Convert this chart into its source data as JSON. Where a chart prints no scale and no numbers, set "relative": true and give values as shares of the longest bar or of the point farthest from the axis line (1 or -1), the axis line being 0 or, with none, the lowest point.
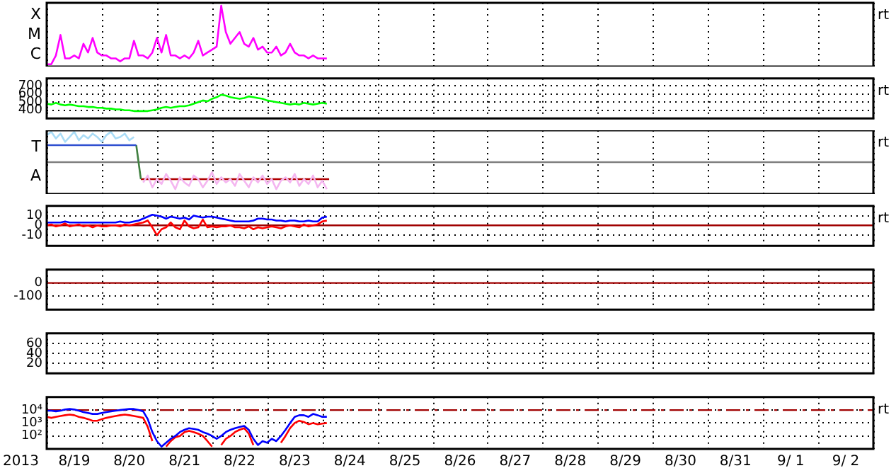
{
  "chart_data": [
    {
      "type": "line",
      "relative": true,
      "grid": "x",
      "tick_labels": "y",
      "annotations": [
        "rt",
        "X",
        "M",
        "C"
      ],
      "xlim": [
        "2013-08-19T00:00",
        "2013-09-03T00:00"
      ],
      "xticks": [
        {
          "value": "2013-08-19T00:00",
          "label": null
        },
        {
          "value": "2013-08-20T00:00",
          "label": null
        },
        {
          "value": "2013-08-21T00:00",
          "label": null
        },
        {
          "value": "2013-08-22T00:00",
          "label": null
        },
        {
          "value": "2013-08-23T00:00",
          "label": null
        },
        {
          "value": "2013-08-24T00:00",
          "label": null
        },
        {
          "value": "2013-08-25T00:00",
          "label": null
        },
        {
          "value": "2013-08-26T00:00",
          "label": null
        },
        {
          "value": "2013-08-27T00:00",
          "label": null
        },
        {
          "value": "2013-08-28T00:00",
          "label": null
        },
        {
          "value": "2013-08-29T00:00",
          "label": null
        },
        {
          "value": "2013-08-30T00:00",
          "label": null
        },
        {
          "value": "2013-08-31T00:00",
          "label": null
        },
        {
          "value": "2013-09-01T00:00",
          "label": null
        },
        {
          "value": "2013-09-02T00:00",
          "label": null
        },
        {
          "value": "2013-09-03T00:00",
          "label": null
        }
      ],
      "x": [
        "2013-08-19T00:00",
        "2013-08-19T02:00",
        "2013-08-19T04:00",
        "2013-08-19T06:00",
        "2013-08-19T08:00",
        "2013-08-19T10:00",
        "2013-08-19T12:00",
        "2013-08-19T14:00",
        "2013-08-19T16:00",
        "2013-08-19T18:00",
        "2013-08-19T20:00",
        "2013-08-19T22:00",
        "2013-08-20T00:00",
        "2013-08-20T02:00",
        "2013-08-20T04:00",
        "2013-08-20T06:00",
        "2013-08-20T08:00",
        "2013-08-20T10:00",
        "2013-08-20T12:00",
        "2013-08-20T14:00",
        "2013-08-20T16:00",
        "2013-08-20T18:00",
        "2013-08-20T20:00",
        "2013-08-20T22:00",
        "2013-08-21T00:00",
        "2013-08-21T02:00",
        "2013-08-21T04:00",
        "2013-08-21T06:00",
        "2013-08-21T08:00",
        "2013-08-21T10:00",
        "2013-08-21T12:00",
        "2013-08-21T14:00",
        "2013-08-21T16:00",
        "2013-08-21T18:00",
        "2013-08-21T20:00",
        "2013-08-21T22:00",
        "2013-08-22T00:00",
        "2013-08-22T02:00",
        "2013-08-22T04:00",
        "2013-08-22T06:00",
        "2013-08-22T08:00",
        "2013-08-22T10:00",
        "2013-08-22T12:00",
        "2013-08-22T14:00",
        "2013-08-22T16:00",
        "2013-08-22T18:00",
        "2013-08-22T20:00",
        "2013-08-22T22:00",
        "2013-08-23T00:00",
        "2013-08-23T02:00",
        "2013-08-23T04:00",
        "2013-08-23T06:00",
        "2013-08-23T08:00",
        "2013-08-23T10:00",
        "2013-08-23T12:00",
        "2013-08-23T14:00",
        "2013-08-23T16:00",
        "2013-08-23T18:00",
        "2013-08-23T20:00",
        "2013-08-23T22:00",
        "2013-08-24T00:00",
        "2013-08-24T02:00"
      ],
      "series": [
        {
          "color": "#ff00ff",
          "values": [
            0,
            0,
            0.15,
            0.5,
            0.1,
            0.1,
            0.15,
            0.1,
            0.35,
            0.2,
            0.45,
            0.2,
            0.15,
            0.15,
            0.1,
            0.1,
            0.05,
            0.1,
            0.1,
            0.4,
            0.15,
            0.15,
            0.1,
            0.2,
            0.45,
            0.2,
            0.5,
            0.15,
            0.15,
            0.1,
            0.15,
            0.1,
            0.2,
            0.4,
            0.15,
            0.2,
            0.25,
            0.3,
            1,
            0.55,
            0.35,
            0.45,
            0.55,
            0.35,
            0.3,
            0.45,
            0.25,
            0.3,
            0.2,
            0.2,
            0.3,
            0.15,
            0.2,
            0.35,
            0.2,
            0.15,
            0.15,
            0.1,
            0.15,
            0.1,
            0.1,
            0.1
          ]
        }
      ]
    },
    {
      "type": "line",
      "grid": true,
      "tick_labels": "y",
      "annotations": [
        "rt"
      ],
      "xlim": [
        "2013-08-19T00:00",
        "2013-09-03T00:00"
      ],
      "xticks": [
        {
          "value": "2013-08-19T00:00",
          "label": null
        },
        {
          "value": "2013-08-20T00:00",
          "label": null
        },
        {
          "value": "2013-08-21T00:00",
          "label": null
        },
        {
          "value": "2013-08-22T00:00",
          "label": null
        },
        {
          "value": "2013-08-23T00:00",
          "label": null
        },
        {
          "value": "2013-08-24T00:00",
          "label": null
        },
        {
          "value": "2013-08-25T00:00",
          "label": null
        },
        {
          "value": "2013-08-26T00:00",
          "label": null
        },
        {
          "value": "2013-08-27T00:00",
          "label": null
        },
        {
          "value": "2013-08-28T00:00",
          "label": null
        },
        {
          "value": "2013-08-29T00:00",
          "label": null
        },
        {
          "value": "2013-08-30T00:00",
          "label": null
        },
        {
          "value": "2013-08-31T00:00",
          "label": null
        },
        {
          "value": "2013-09-01T00:00",
          "label": null
        },
        {
          "value": "2013-09-02T00:00",
          "label": null
        },
        {
          "value": "2013-09-03T00:00",
          "label": null
        }
      ],
      "ylim": [
        300,
        790
      ],
      "yticks": [
        400,
        500,
        600,
        700
      ],
      "x": [
        "2013-08-19T00:00",
        "2013-08-19T02:00",
        "2013-08-19T04:00",
        "2013-08-19T06:00",
        "2013-08-19T08:00",
        "2013-08-19T10:00",
        "2013-08-19T12:00",
        "2013-08-19T14:00",
        "2013-08-19T16:00",
        "2013-08-19T18:00",
        "2013-08-19T20:00",
        "2013-08-19T22:00",
        "2013-08-20T00:00",
        "2013-08-20T02:00",
        "2013-08-20T04:00",
        "2013-08-20T06:00",
        "2013-08-20T08:00",
        "2013-08-20T10:00",
        "2013-08-20T12:00",
        "2013-08-20T14:00",
        "2013-08-20T16:00",
        "2013-08-20T18:00",
        "2013-08-20T20:00",
        "2013-08-20T22:00",
        "2013-08-21T00:00",
        "2013-08-21T02:00",
        "2013-08-21T04:00",
        "2013-08-21T06:00",
        "2013-08-21T08:00",
        "2013-08-21T10:00",
        "2013-08-21T12:00",
        "2013-08-21T14:00",
        "2013-08-21T16:00",
        "2013-08-21T18:00",
        "2013-08-21T20:00",
        "2013-08-21T22:00",
        "2013-08-22T00:00",
        "2013-08-22T02:00",
        "2013-08-22T04:00",
        "2013-08-22T06:00",
        "2013-08-22T08:00",
        "2013-08-22T10:00",
        "2013-08-22T12:00",
        "2013-08-22T14:00",
        "2013-08-22T16:00",
        "2013-08-22T18:00",
        "2013-08-22T20:00",
        "2013-08-22T22:00",
        "2013-08-23T00:00",
        "2013-08-23T02:00",
        "2013-08-23T04:00",
        "2013-08-23T06:00",
        "2013-08-23T08:00",
        "2013-08-23T10:00",
        "2013-08-23T12:00",
        "2013-08-23T14:00",
        "2013-08-23T16:00",
        "2013-08-23T18:00",
        "2013-08-23T20:00",
        "2013-08-23T22:00",
        "2013-08-24T00:00",
        "2013-08-24T02:00"
      ],
      "series": [
        {
          "color": "#00ff00",
          "values": [
            480,
            470,
            490,
            470,
            460,
            470,
            460,
            450,
            450,
            440,
            440,
            430,
            430,
            420,
            420,
            410,
            410,
            400,
            400,
            390,
            390,
            390,
            390,
            400,
            410,
            430,
            440,
            430,
            440,
            450,
            450,
            460,
            480,
            500,
            520,
            510,
            540,
            560,
            590,
            580,
            560,
            550,
            540,
            550,
            570,
            560,
            550,
            540,
            520,
            510,
            500,
            490,
            480,
            470,
            480,
            470,
            490,
            480,
            470,
            480,
            490,
            480
          ]
        }
      ]
    },
    {
      "type": "line",
      "relative": true,
      "grid": "x",
      "tick_labels": "y",
      "annotations": [
        "rt",
        "T",
        "A"
      ],
      "xlim": [
        "2013-08-19T00:00",
        "2013-09-03T00:00"
      ],
      "xticks": [
        {
          "value": "2013-08-19T00:00",
          "label": null
        },
        {
          "value": "2013-08-20T00:00",
          "label": null
        },
        {
          "value": "2013-08-21T00:00",
          "label": null
        },
        {
          "value": "2013-08-22T00:00",
          "label": null
        },
        {
          "value": "2013-08-23T00:00",
          "label": null
        },
        {
          "value": "2013-08-24T00:00",
          "label": null
        },
        {
          "value": "2013-08-25T00:00",
          "label": null
        },
        {
          "value": "2013-08-26T00:00",
          "label": null
        },
        {
          "value": "2013-08-27T00:00",
          "label": null
        },
        {
          "value": "2013-08-28T00:00",
          "label": null
        },
        {
          "value": "2013-08-29T00:00",
          "label": null
        },
        {
          "value": "2013-08-30T00:00",
          "label": null
        },
        {
          "value": "2013-08-31T00:00",
          "label": null
        },
        {
          "value": "2013-09-01T00:00",
          "label": null
        },
        {
          "value": "2013-09-02T00:00",
          "label": null
        },
        {
          "value": "2013-09-03T00:00",
          "label": null
        }
      ],
      "ref_lines": [
        {
          "axis": "y",
          "value": 0,
          "color": "#808080"
        }
      ],
      "series": [
        {
          "color": "#aadcf6",
          "x": [
            "2013-08-19T00:00",
            "2013-08-19T02:00",
            "2013-08-19T04:00",
            "2013-08-19T06:00",
            "2013-08-19T08:00",
            "2013-08-19T10:00",
            "2013-08-19T12:00",
            "2013-08-19T14:00",
            "2013-08-19T16:00",
            "2013-08-19T18:00",
            "2013-08-19T20:00",
            "2013-08-19T22:00",
            "2013-08-20T00:00",
            "2013-08-20T02:00",
            "2013-08-20T04:00",
            "2013-08-20T06:00",
            "2013-08-20T08:00",
            "2013-08-20T10:00",
            "2013-08-20T12:00",
            "2013-08-20T14:00"
          ],
          "values": [
            0.89,
            1,
            0.78,
            0.94,
            0.67,
            0.83,
            1,
            0.72,
            0.89,
            0.78,
            0.94,
            0.83,
            0.67,
            0.89,
            1,
            0.78,
            0.83,
            0.94,
            0.72,
            0.83
          ]
        },
        {
          "color": "#f4b6f0",
          "x": [
            "2013-08-20T18:00",
            "2013-08-20T20:00",
            "2013-08-20T22:00",
            "2013-08-21T00:00",
            "2013-08-21T02:00",
            "2013-08-21T04:00",
            "2013-08-21T06:00",
            "2013-08-21T08:00",
            "2013-08-21T10:00",
            "2013-08-21T12:00",
            "2013-08-21T14:00",
            "2013-08-21T16:00",
            "2013-08-21T18:00",
            "2013-08-21T20:00",
            "2013-08-21T22:00",
            "2013-08-22T00:00",
            "2013-08-22T02:00",
            "2013-08-22T04:00",
            "2013-08-22T06:00",
            "2013-08-22T08:00",
            "2013-08-22T10:00",
            "2013-08-22T12:00",
            "2013-08-22T14:00",
            "2013-08-22T16:00",
            "2013-08-22T18:00",
            "2013-08-22T20:00",
            "2013-08-22T22:00",
            "2013-08-23T00:00",
            "2013-08-23T02:00",
            "2013-08-23T04:00",
            "2013-08-23T06:00",
            "2013-08-23T08:00",
            "2013-08-23T10:00",
            "2013-08-23T12:00",
            "2013-08-23T14:00",
            "2013-08-23T16:00",
            "2013-08-23T18:00",
            "2013-08-23T20:00",
            "2013-08-23T22:00",
            "2013-08-24T00:00",
            "2013-08-24T02:00"
          ],
          "values": [
            -0.67,
            -0.44,
            -0.83,
            -0.56,
            -0.72,
            -0.39,
            -0.61,
            -0.89,
            -0.5,
            -0.67,
            -0.78,
            -0.44,
            -0.56,
            -0.83,
            -0.61,
            -0.33,
            -0.72,
            -0.5,
            -0.67,
            -0.56,
            -0.78,
            -0.39,
            -0.61,
            -0.83,
            -0.5,
            -0.67,
            -0.44,
            -0.72,
            -0.56,
            -0.89,
            -0.61,
            -0.5,
            -0.67,
            -0.39,
            -0.78,
            -0.56,
            -0.72,
            -0.44,
            -0.83,
            -0.61,
            -0.89
          ]
        },
        {
          "color": "#3050d0",
          "x": [
            "2013-08-19T00:00",
            "2013-08-20T15:00"
          ],
          "values": [
            0.56,
            0.56
          ]
        },
        {
          "color": "#408040",
          "x": [
            "2013-08-20T15:00",
            "2013-08-20T17:00"
          ],
          "values": [
            0.56,
            -0.56
          ]
        },
        {
          "color": "#b00000",
          "x": [
            "2013-08-20T17:00",
            "2013-08-24T03:00"
          ],
          "values": [
            -0.56,
            -0.56
          ]
        }
      ]
    },
    {
      "type": "line",
      "grid": true,
      "tick_labels": "y",
      "annotations": [
        "rt"
      ],
      "xlim": [
        "2013-08-19T00:00",
        "2013-09-03T00:00"
      ],
      "xticks": [
        {
          "value": "2013-08-19T00:00",
          "label": null
        },
        {
          "value": "2013-08-20T00:00",
          "label": null
        },
        {
          "value": "2013-08-21T00:00",
          "label": null
        },
        {
          "value": "2013-08-22T00:00",
          "label": null
        },
        {
          "value": "2013-08-23T00:00",
          "label": null
        },
        {
          "value": "2013-08-24T00:00",
          "label": null
        },
        {
          "value": "2013-08-25T00:00",
          "label": null
        },
        {
          "value": "2013-08-26T00:00",
          "label": null
        },
        {
          "value": "2013-08-27T00:00",
          "label": null
        },
        {
          "value": "2013-08-28T00:00",
          "label": null
        },
        {
          "value": "2013-08-29T00:00",
          "label": null
        },
        {
          "value": "2013-08-30T00:00",
          "label": null
        },
        {
          "value": "2013-08-31T00:00",
          "label": null
        },
        {
          "value": "2013-09-01T00:00",
          "label": null
        },
        {
          "value": "2013-09-02T00:00",
          "label": null
        },
        {
          "value": "2013-09-03T00:00",
          "label": null
        }
      ],
      "ylim": [
        -21,
        20
      ],
      "yticks": [
        -10,
        0,
        10
      ],
      "ref_lines": [
        {
          "axis": "y",
          "value": 0,
          "color": "#a00000"
        }
      ],
      "x": [
        "2013-08-19T00:00",
        "2013-08-19T02:00",
        "2013-08-19T04:00",
        "2013-08-19T06:00",
        "2013-08-19T08:00",
        "2013-08-19T10:00",
        "2013-08-19T12:00",
        "2013-08-19T14:00",
        "2013-08-19T16:00",
        "2013-08-19T18:00",
        "2013-08-19T20:00",
        "2013-08-19T22:00",
        "2013-08-20T00:00",
        "2013-08-20T02:00",
        "2013-08-20T04:00",
        "2013-08-20T06:00",
        "2013-08-20T08:00",
        "2013-08-20T10:00",
        "2013-08-20T12:00",
        "2013-08-20T14:00",
        "2013-08-20T16:00",
        "2013-08-20T18:00",
        "2013-08-20T20:00",
        "2013-08-20T22:00",
        "2013-08-21T00:00",
        "2013-08-21T02:00",
        "2013-08-21T04:00",
        "2013-08-21T06:00",
        "2013-08-21T08:00",
        "2013-08-21T10:00",
        "2013-08-21T12:00",
        "2013-08-21T14:00",
        "2013-08-21T16:00",
        "2013-08-21T18:00",
        "2013-08-21T20:00",
        "2013-08-21T22:00",
        "2013-08-22T00:00",
        "2013-08-22T02:00",
        "2013-08-22T04:00",
        "2013-08-22T06:00",
        "2013-08-22T08:00",
        "2013-08-22T10:00",
        "2013-08-22T12:00",
        "2013-08-22T14:00",
        "2013-08-22T16:00",
        "2013-08-22T18:00",
        "2013-08-22T20:00",
        "2013-08-22T22:00",
        "2013-08-23T00:00",
        "2013-08-23T02:00",
        "2013-08-23T04:00",
        "2013-08-23T06:00",
        "2013-08-23T08:00",
        "2013-08-23T10:00",
        "2013-08-23T12:00",
        "2013-08-23T14:00",
        "2013-08-23T16:00",
        "2013-08-23T18:00",
        "2013-08-23T20:00",
        "2013-08-23T22:00",
        "2013-08-24T00:00",
        "2013-08-24T02:00"
      ],
      "series": [
        {
          "color": "#0000ff",
          "values": [
            3,
            3,
            3,
            3,
            4,
            3,
            3,
            3,
            3,
            3,
            3,
            3,
            3,
            3,
            3,
            3,
            4,
            3,
            3,
            4,
            5,
            7,
            9,
            11,
            10,
            9,
            7,
            9,
            8,
            7,
            8,
            6,
            10,
            9,
            8,
            9,
            9,
            8,
            7,
            6,
            5,
            4,
            4,
            4,
            4,
            5,
            7,
            7,
            6,
            6,
            5,
            5,
            4,
            5,
            5,
            4,
            4,
            5,
            4,
            4,
            8,
            9
          ]
        },
        {
          "color": "#ff0000",
          "values": [
            0,
            1,
            -1,
            0,
            2,
            -1,
            0,
            1,
            -1,
            0,
            -2,
            0,
            -1,
            -1,
            0,
            0,
            -1,
            1,
            0,
            1,
            2,
            3,
            5,
            -2,
            -10,
            -4,
            -2,
            3,
            -2,
            -4,
            5,
            -1,
            -3,
            -2,
            6,
            -2,
            -1,
            -2,
            -1,
            -1,
            0,
            -2,
            -2,
            -3,
            -1,
            -4,
            -2,
            -3,
            -2,
            -1,
            -2,
            -3,
            -1,
            0,
            -1,
            -2,
            1,
            -1,
            0,
            1,
            4,
            5
          ]
        }
      ]
    },
    {
      "type": "line",
      "grid": true,
      "tick_labels": "y",
      "xlim": [
        "2013-08-19T00:00",
        "2013-09-03T00:00"
      ],
      "xticks": [
        {
          "value": "2013-08-19T00:00",
          "label": null
        },
        {
          "value": "2013-08-20T00:00",
          "label": null
        },
        {
          "value": "2013-08-21T00:00",
          "label": null
        },
        {
          "value": "2013-08-22T00:00",
          "label": null
        },
        {
          "value": "2013-08-23T00:00",
          "label": null
        },
        {
          "value": "2013-08-24T00:00",
          "label": null
        },
        {
          "value": "2013-08-25T00:00",
          "label": null
        },
        {
          "value": "2013-08-26T00:00",
          "label": null
        },
        {
          "value": "2013-08-27T00:00",
          "label": null
        },
        {
          "value": "2013-08-28T00:00",
          "label": null
        },
        {
          "value": "2013-08-29T00:00",
          "label": null
        },
        {
          "value": "2013-08-30T00:00",
          "label": null
        },
        {
          "value": "2013-08-31T00:00",
          "label": null
        },
        {
          "value": "2013-09-01T00:00",
          "label": null
        },
        {
          "value": "2013-09-02T00:00",
          "label": null
        },
        {
          "value": "2013-09-03T00:00",
          "label": null
        }
      ],
      "ylim": [
        -200,
        100
      ],
      "yticks": [
        -100,
        0
      ],
      "ref_lines": [
        {
          "axis": "y",
          "value": 0,
          "color": "#a00000"
        }
      ]
    },
    {
      "type": "line",
      "grid": true,
      "tick_labels": "y",
      "xlim": [
        "2013-08-19T00:00",
        "2013-09-03T00:00"
      ],
      "xticks": [
        {
          "value": "2013-08-19T00:00",
          "label": null
        },
        {
          "value": "2013-08-20T00:00",
          "label": null
        },
        {
          "value": "2013-08-21T00:00",
          "label": null
        },
        {
          "value": "2013-08-22T00:00",
          "label": null
        },
        {
          "value": "2013-08-23T00:00",
          "label": null
        },
        {
          "value": "2013-08-24T00:00",
          "label": null
        },
        {
          "value": "2013-08-25T00:00",
          "label": null
        },
        {
          "value": "2013-08-26T00:00",
          "label": null
        },
        {
          "value": "2013-08-27T00:00",
          "label": null
        },
        {
          "value": "2013-08-28T00:00",
          "label": null
        },
        {
          "value": "2013-08-29T00:00",
          "label": null
        },
        {
          "value": "2013-08-30T00:00",
          "label": null
        },
        {
          "value": "2013-08-31T00:00",
          "label": null
        },
        {
          "value": "2013-09-01T00:00",
          "label": null
        },
        {
          "value": "2013-09-02T00:00",
          "label": null
        },
        {
          "value": "2013-09-03T00:00",
          "label": null
        }
      ],
      "ylim": [
        0,
        80
      ],
      "yticks": [
        20,
        40,
        60
      ]
    },
    {
      "type": "line",
      "log": true,
      "grid": true,
      "xlabel": "2013",
      "annotations": [
        "rt"
      ],
      "xlim": [
        "2013-08-19T00:00",
        "2013-09-03T00:00"
      ],
      "xticks": [
        {
          "value": "2013-08-19T00:00",
          "label": null
        },
        {
          "value": "2013-08-19T12:00",
          "label": "8/19"
        },
        {
          "value": "2013-08-20T00:00",
          "label": null
        },
        {
          "value": "2013-08-20T12:00",
          "label": "8/20"
        },
        {
          "value": "2013-08-21T00:00",
          "label": null
        },
        {
          "value": "2013-08-21T12:00",
          "label": "8/21"
        },
        {
          "value": "2013-08-22T00:00",
          "label": null
        },
        {
          "value": "2013-08-22T12:00",
          "label": "8/22"
        },
        {
          "value": "2013-08-23T00:00",
          "label": null
        },
        {
          "value": "2013-08-23T12:00",
          "label": "8/23"
        },
        {
          "value": "2013-08-24T00:00",
          "label": null
        },
        {
          "value": "2013-08-24T12:00",
          "label": "8/24"
        },
        {
          "value": "2013-08-25T00:00",
          "label": null
        },
        {
          "value": "2013-08-25T12:00",
          "label": "8/25"
        },
        {
          "value": "2013-08-26T00:00",
          "label": null
        },
        {
          "value": "2013-08-26T12:00",
          "label": "8/26"
        },
        {
          "value": "2013-08-27T00:00",
          "label": null
        },
        {
          "value": "2013-08-27T12:00",
          "label": "8/27"
        },
        {
          "value": "2013-08-28T00:00",
          "label": null
        },
        {
          "value": "2013-08-28T12:00",
          "label": "8/28"
        },
        {
          "value": "2013-08-29T00:00",
          "label": null
        },
        {
          "value": "2013-08-29T12:00",
          "label": "8/29"
        },
        {
          "value": "2013-08-30T00:00",
          "label": null
        },
        {
          "value": "2013-08-30T12:00",
          "label": "8/30"
        },
        {
          "value": "2013-08-31T00:00",
          "label": null
        },
        {
          "value": "2013-08-31T12:00",
          "label": "8/31"
        },
        {
          "value": "2013-09-01T00:00",
          "label": null
        },
        {
          "value": "2013-09-01T12:00",
          "label": "9/ 1"
        },
        {
          "value": "2013-09-02T00:00",
          "label": null
        },
        {
          "value": "2013-09-02T12:00",
          "label": "9/ 2"
        },
        {
          "value": "2013-09-03T00:00",
          "label": null
        }
      ],
      "ylim": [
        10,
        100000
      ],
      "yticks": [
        {
          "value": 100,
          "label": "10²"
        },
        {
          "value": 1000,
          "label": "10³"
        },
        {
          "value": 10000,
          "label": "10⁴"
        }
      ],
      "ref_lines": [
        {
          "axis": "y",
          "value": 10000,
          "color": "#a00000",
          "line_style": "dashed"
        }
      ],
      "x": [
        "2013-08-19T00:00",
        "2013-08-19T02:00",
        "2013-08-19T04:00",
        "2013-08-19T06:00",
        "2013-08-19T08:00",
        "2013-08-19T10:00",
        "2013-08-19T12:00",
        "2013-08-19T14:00",
        "2013-08-19T16:00",
        "2013-08-19T18:00",
        "2013-08-19T20:00",
        "2013-08-19T22:00",
        "2013-08-20T00:00",
        "2013-08-20T02:00",
        "2013-08-20T04:00",
        "2013-08-20T06:00",
        "2013-08-20T08:00",
        "2013-08-20T10:00",
        "2013-08-20T12:00",
        "2013-08-20T14:00",
        "2013-08-20T16:00",
        "2013-08-20T18:00",
        "2013-08-20T20:00",
        "2013-08-20T22:00",
        "2013-08-21T00:00",
        "2013-08-21T02:00",
        "2013-08-21T04:00",
        "2013-08-21T06:00",
        "2013-08-21T08:00",
        "2013-08-21T10:00",
        "2013-08-21T12:00",
        "2013-08-21T14:00",
        "2013-08-21T16:00",
        "2013-08-21T18:00",
        "2013-08-21T20:00",
        "2013-08-21T22:00",
        "2013-08-22T00:00",
        "2013-08-22T02:00",
        "2013-08-22T04:00",
        "2013-08-22T06:00",
        "2013-08-22T08:00",
        "2013-08-22T10:00",
        "2013-08-22T12:00",
        "2013-08-22T14:00",
        "2013-08-22T16:00",
        "2013-08-22T18:00",
        "2013-08-22T20:00",
        "2013-08-22T22:00",
        "2013-08-23T00:00",
        "2013-08-23T02:00",
        "2013-08-23T04:00",
        "2013-08-23T06:00",
        "2013-08-23T08:00",
        "2013-08-23T10:00",
        "2013-08-23T12:00",
        "2013-08-23T14:00",
        "2013-08-23T16:00",
        "2013-08-23T18:00",
        "2013-08-23T20:00",
        "2013-08-23T22:00",
        "2013-08-24T00:00",
        "2013-08-24T02:00"
      ],
      "series": [
        {
          "color": "#0000ff",
          "values": [
            9000,
            9000,
            8000,
            9000,
            11000,
            12000,
            11000,
            9000,
            7000,
            6000,
            5000,
            5000,
            6000,
            7000,
            8000,
            9000,
            10000,
            11000,
            12000,
            12000,
            10000,
            8000,
            2000,
            200,
            40,
            15,
            30,
            60,
            100,
            200,
            300,
            400,
            350,
            300,
            200,
            150,
            100,
            60,
            100,
            200,
            300,
            400,
            500,
            600,
            300,
            60,
            20,
            40,
            30,
            60,
            40,
            100,
            300,
            1000,
            3000,
            4000,
            4000,
            3000,
            5000,
            4000,
            3000,
            3000
          ]
        },
        {
          "color": "#ff0000",
          "values": [
            3000,
            2500,
            3000,
            3500,
            4000,
            4500,
            4000,
            3000,
            2500,
            2000,
            1500,
            1500,
            2000,
            2500,
            3000,
            3500,
            4000,
            4500,
            4000,
            3500,
            3000,
            2500,
            500,
            40,
            null,
            null,
            15,
            40,
            80,
            100,
            200,
            250,
            200,
            150,
            100,
            40,
            15,
            null,
            20,
            60,
            100,
            200,
            300,
            400,
            150,
            20,
            null,
            null,
            null,
            null,
            null,
            30,
            100,
            400,
            1000,
            1500,
            1200,
            800,
            1000,
            800,
            900,
            1000
          ]
        }
      ]
    }
  ]
}
